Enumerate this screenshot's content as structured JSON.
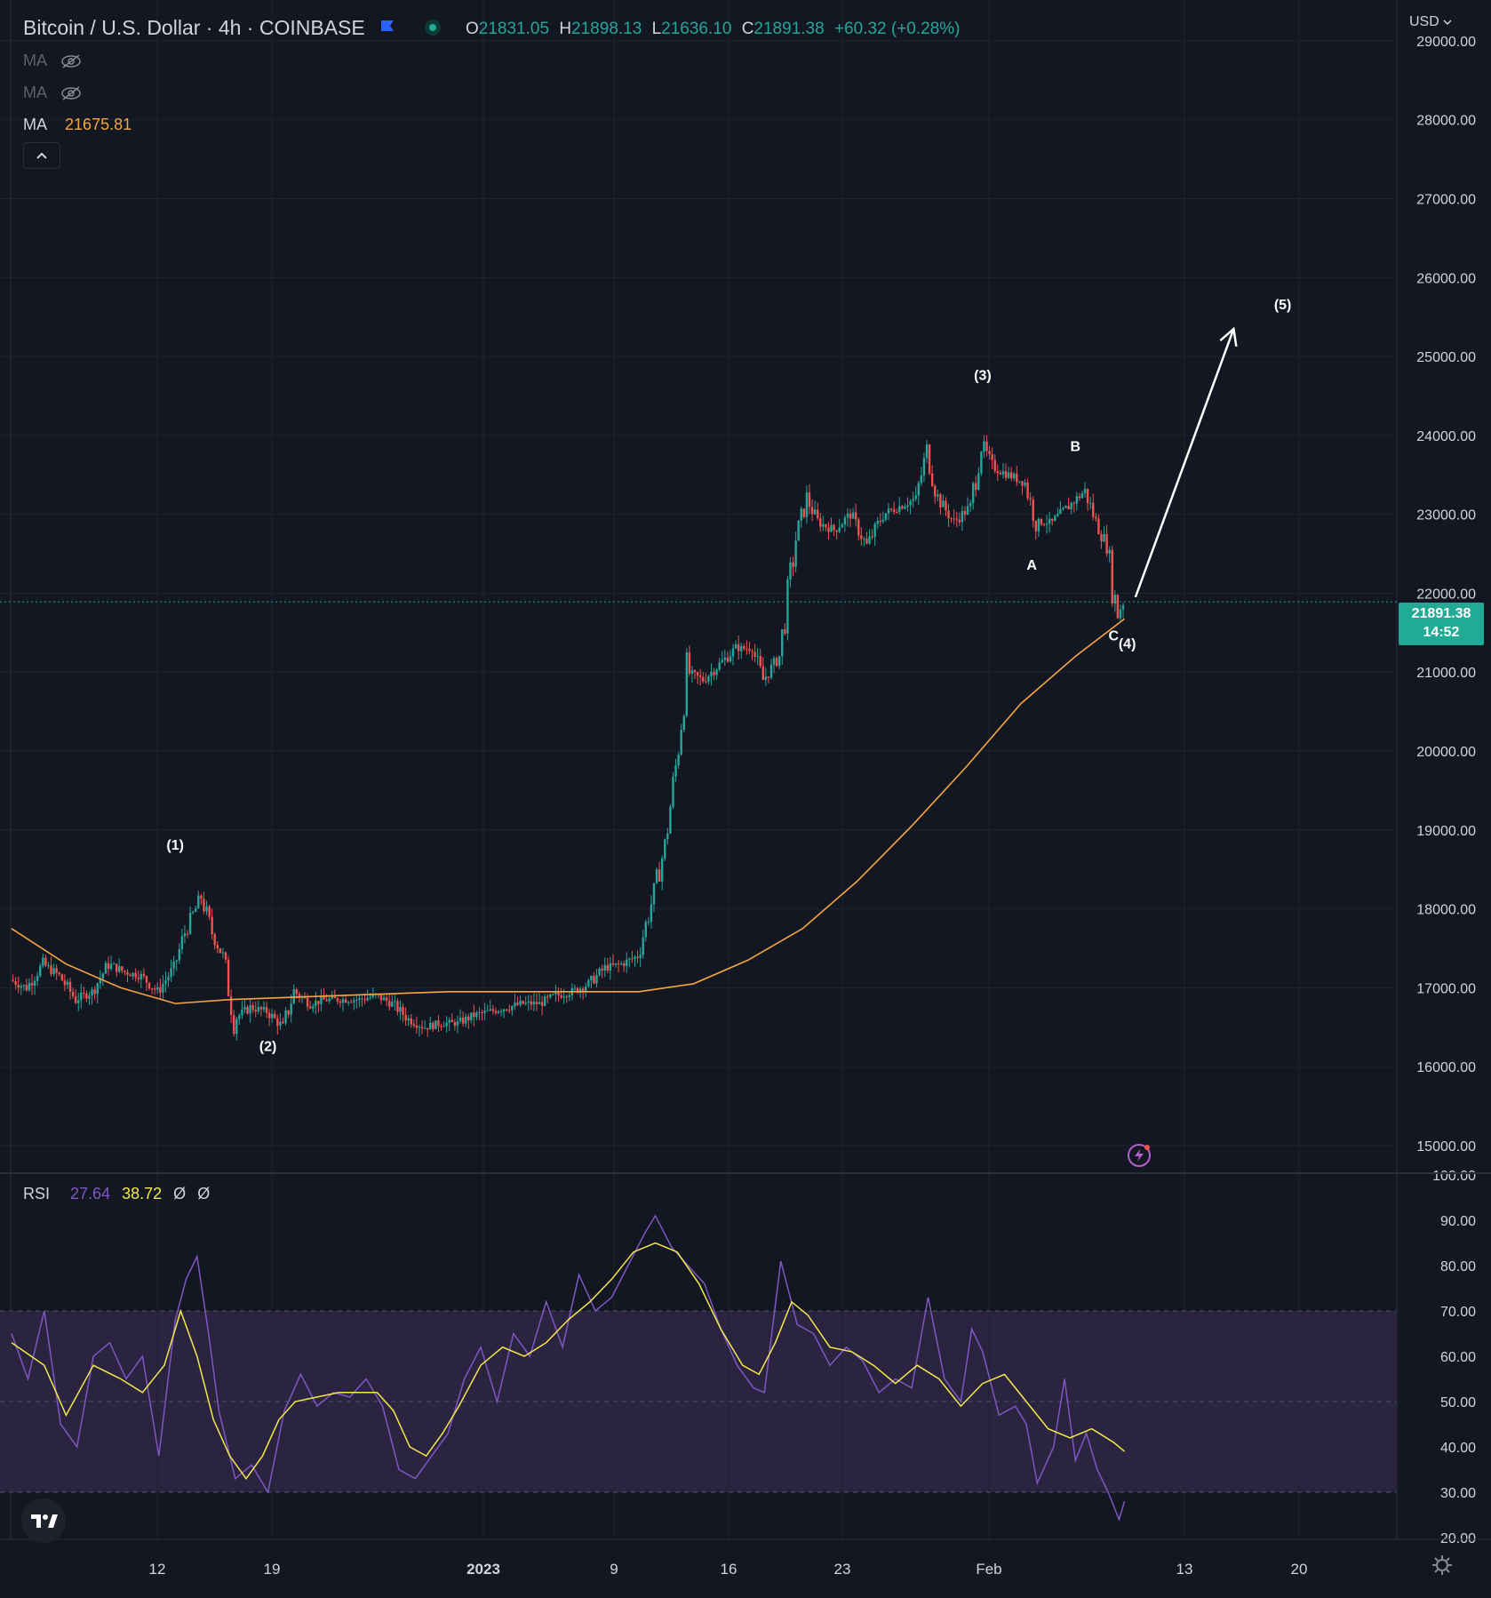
{
  "header": {
    "title": "Bitcoin / U.S. Dollar · 4h · COINBASE",
    "ohlc": [
      {
        "k": "O",
        "v": "21831.05"
      },
      {
        "k": "H",
        "v": "21898.13"
      },
      {
        "k": "L",
        "v": "21636.10"
      },
      {
        "k": "C",
        "v": "21891.38"
      }
    ],
    "change": "+60.32 (+0.28%)",
    "currency": "USD"
  },
  "indicators": {
    "ma_hidden_1": "MA",
    "ma_hidden_2": "MA",
    "ma_label": "MA",
    "ma_value": "21675.81",
    "rsi_label": "RSI",
    "rsi_value": "27.64",
    "rsi_ma_value": "38.72",
    "rsi_extra_1": "Ø",
    "rsi_extra_2": "Ø"
  },
  "last_price": {
    "value": "21891.38",
    "countdown": "14:52"
  },
  "colors": {
    "background": "#131722",
    "grid": "#1f2330",
    "up": "#26a69a",
    "down": "#ef5350",
    "ma": "#f7a541",
    "rsi": "#7e57c2",
    "rsi_ma": "#f5e94b",
    "last_price": "#22ab94",
    "rsi_band": "#2a2440",
    "text": "#d1d4dc",
    "annotation": "#ffffff"
  },
  "chart_data": [
    {
      "type": "candlestick",
      "series": [
        {
          "name": "BTCUSD",
          "points": [
            [
              0,
              17100
            ],
            [
              3,
              17000
            ],
            [
              6,
              17300
            ],
            [
              9,
              17150
            ],
            [
              12,
              16850
            ],
            [
              15,
              16950
            ],
            [
              18,
              17300
            ],
            [
              21,
              17200
            ],
            [
              24,
              17150
            ],
            [
              27,
              16950
            ],
            [
              30,
              17250
            ],
            [
              32,
              17700
            ],
            [
              34,
              18000
            ],
            [
              35,
              18150
            ],
            [
              37,
              17700
            ],
            [
              39,
              17400
            ],
            [
              41,
              16600
            ],
            [
              44,
              16750
            ],
            [
              47,
              16700
            ],
            [
              50,
              16500
            ],
            [
              52,
              16950
            ],
            [
              55,
              16800
            ],
            [
              58,
              16850
            ],
            [
              61,
              16850
            ],
            [
              64,
              16850
            ],
            [
              67,
              16900
            ],
            [
              70,
              16800
            ],
            [
              73,
              16600
            ],
            [
              76,
              16500
            ],
            [
              79,
              16550
            ],
            [
              82,
              16550
            ],
            [
              85,
              16650
            ],
            [
              88,
              16700
            ],
            [
              91,
              16750
            ],
            [
              94,
              16800
            ],
            [
              97,
              16800
            ],
            [
              100,
              16900
            ],
            [
              103,
              16950
            ],
            [
              106,
              17050
            ],
            [
              109,
              17250
            ],
            [
              112,
              17300
            ],
            [
              115,
              17400
            ],
            [
              118,
              18200
            ],
            [
              120,
              18800
            ],
            [
              122,
              19800
            ],
            [
              124,
              21000
            ],
            [
              127,
              20900
            ],
            [
              130,
              21100
            ],
            [
              133,
              21300
            ],
            [
              136,
              21300
            ],
            [
              138,
              20900
            ],
            [
              141,
              21200
            ],
            [
              144,
              22700
            ],
            [
              146,
              23200
            ],
            [
              148,
              22900
            ],
            [
              151,
              22800
            ],
            [
              154,
              23000
            ],
            [
              157,
              22600
            ],
            [
              160,
              23000
            ],
            [
              163,
              23100
            ],
            [
              166,
              23200
            ],
            [
              168,
              23800
            ],
            [
              170,
              23200
            ],
            [
              173,
              22900
            ],
            [
              176,
              23100
            ],
            [
              178,
              23900
            ],
            [
              180,
              23600
            ],
            [
              183,
              23500
            ],
            [
              186,
              23400
            ],
            [
              188,
              22900
            ],
            [
              191,
              22900
            ],
            [
              194,
              23100
            ],
            [
              197,
              23300
            ],
            [
              199,
              22900
            ],
            [
              201,
              22600
            ],
            [
              202,
              22100
            ],
            [
              203,
              21750
            ],
            [
              204,
              21891
            ]
          ]
        },
        {
          "name": "MA",
          "points": [
            [
              0,
              17750
            ],
            [
              10,
              17300
            ],
            [
              20,
              17000
            ],
            [
              30,
              16800
            ],
            [
              40,
              16850
            ],
            [
              60,
              16900
            ],
            [
              80,
              16950
            ],
            [
              100,
              16950
            ],
            [
              115,
              16950
            ],
            [
              125,
              17050
            ],
            [
              135,
              17350
            ],
            [
              145,
              17750
            ],
            [
              155,
              18350
            ],
            [
              165,
              19050
            ],
            [
              175,
              19800
            ],
            [
              185,
              20600
            ],
            [
              195,
              21200
            ],
            [
              204,
              21676
            ]
          ]
        }
      ],
      "x_ticks": [
        "12",
        "19",
        "2023",
        "9",
        "16",
        "23",
        "Feb",
        "13",
        "20"
      ],
      "y_ticks": [
        "15000.00",
        "16000.00",
        "17000.00",
        "18000.00",
        "19000.00",
        "20000.00",
        "21000.00",
        "22000.00",
        "23000.00",
        "24000.00",
        "25000.00",
        "26000.00",
        "27000.00",
        "28000.00",
        "29000.00"
      ],
      "ylim": [
        14650,
        29450
      ],
      "annotations": [
        {
          "text": "(1)",
          "x": 30,
          "y": 18750
        },
        {
          "text": "(2)",
          "x": 47,
          "y": 16200
        },
        {
          "text": "(3)",
          "x": 178,
          "y": 24700
        },
        {
          "text": "A",
          "x": 187,
          "y": 22300
        },
        {
          "text": "B",
          "x": 195,
          "y": 23800
        },
        {
          "text": "C",
          "x": 202,
          "y": 21400
        },
        {
          "text": "(4)",
          "x": 204.5,
          "y": 21300
        },
        {
          "text": "(5)",
          "x": 233,
          "y": 25600
        }
      ],
      "arrow": {
        "from": [
          206,
          21950
        ],
        "to": [
          224,
          25350
        ]
      }
    },
    {
      "type": "line",
      "title": "RSI",
      "series": [
        {
          "name": "RSI",
          "points": [
            [
              0,
              65
            ],
            [
              3,
              55
            ],
            [
              6,
              70
            ],
            [
              9,
              45
            ],
            [
              12,
              40
            ],
            [
              15,
              60
            ],
            [
              18,
              63
            ],
            [
              21,
              55
            ],
            [
              24,
              60
            ],
            [
              27,
              38
            ],
            [
              30,
              68
            ],
            [
              32,
              77
            ],
            [
              34,
              82
            ],
            [
              36,
              66
            ],
            [
              38,
              48
            ],
            [
              41,
              33
            ],
            [
              44,
              36
            ],
            [
              47,
              30
            ],
            [
              50,
              48
            ],
            [
              53,
              56
            ],
            [
              56,
              49
            ],
            [
              59,
              52
            ],
            [
              62,
              51
            ],
            [
              65,
              55
            ],
            [
              68,
              49
            ],
            [
              71,
              35
            ],
            [
              74,
              33
            ],
            [
              77,
              38
            ],
            [
              80,
              43
            ],
            [
              83,
              55
            ],
            [
              86,
              62
            ],
            [
              89,
              50
            ],
            [
              92,
              65
            ],
            [
              95,
              60
            ],
            [
              98,
              72
            ],
            [
              101,
              62
            ],
            [
              104,
              78
            ],
            [
              107,
              70
            ],
            [
              110,
              73
            ],
            [
              113,
              80
            ],
            [
              116,
              87
            ],
            [
              118,
              91
            ],
            [
              121,
              84
            ],
            [
              124,
              80
            ],
            [
              127,
              76
            ],
            [
              130,
              66
            ],
            [
              133,
              58
            ],
            [
              136,
              53
            ],
            [
              138,
              52
            ],
            [
              141,
              81
            ],
            [
              144,
              67
            ],
            [
              147,
              65
            ],
            [
              150,
              58
            ],
            [
              153,
              62
            ],
            [
              156,
              59
            ],
            [
              159,
              52
            ],
            [
              162,
              55
            ],
            [
              165,
              53
            ],
            [
              168,
              73
            ],
            [
              171,
              55
            ],
            [
              174,
              50
            ],
            [
              176,
              66
            ],
            [
              178,
              61
            ],
            [
              181,
              47
            ],
            [
              184,
              49
            ],
            [
              186,
              45
            ],
            [
              188,
              32
            ],
            [
              191,
              40
            ],
            [
              193,
              55
            ],
            [
              195,
              37
            ],
            [
              197,
              43
            ],
            [
              199,
              35
            ],
            [
              201,
              30
            ],
            [
              203,
              24
            ],
            [
              204,
              28
            ]
          ]
        },
        {
          "name": "RSI MA",
          "points": [
            [
              0,
              63
            ],
            [
              6,
              58
            ],
            [
              10,
              47
            ],
            [
              15,
              58
            ],
            [
              20,
              55
            ],
            [
              24,
              52
            ],
            [
              28,
              58
            ],
            [
              31,
              70
            ],
            [
              34,
              60
            ],
            [
              37,
              46
            ],
            [
              40,
              38
            ],
            [
              43,
              33
            ],
            [
              46,
              38
            ],
            [
              49,
              46
            ],
            [
              52,
              50
            ],
            [
              56,
              51
            ],
            [
              60,
              52
            ],
            [
              64,
              52
            ],
            [
              67,
              52
            ],
            [
              70,
              48
            ],
            [
              73,
              40
            ],
            [
              76,
              38
            ],
            [
              79,
              43
            ],
            [
              82,
              49
            ],
            [
              86,
              58
            ],
            [
              90,
              62
            ],
            [
              94,
              60
            ],
            [
              98,
              63
            ],
            [
              102,
              68
            ],
            [
              106,
              72
            ],
            [
              110,
              77
            ],
            [
              114,
              83
            ],
            [
              118,
              85
            ],
            [
              122,
              83
            ],
            [
              126,
              76
            ],
            [
              130,
              66
            ],
            [
              134,
              58
            ],
            [
              137,
              56
            ],
            [
              140,
              63
            ],
            [
              143,
              72
            ],
            [
              146,
              69
            ],
            [
              150,
              62
            ],
            [
              154,
              61
            ],
            [
              158,
              58
            ],
            [
              162,
              54
            ],
            [
              166,
              58
            ],
            [
              170,
              55
            ],
            [
              174,
              49
            ],
            [
              178,
              54
            ],
            [
              182,
              56
            ],
            [
              186,
              50
            ],
            [
              190,
              44
            ],
            [
              194,
              42
            ],
            [
              198,
              44
            ],
            [
              202,
              41
            ],
            [
              204,
              39
            ]
          ]
        }
      ],
      "y_ticks": [
        "20.00",
        "30.00",
        "40.00",
        "50.00",
        "60.00",
        "70.00",
        "80.00",
        "90.00",
        "100.00"
      ],
      "ylim": [
        20,
        100
      ],
      "bands": {
        "upper": 70,
        "middle": 50,
        "lower": 30
      }
    }
  ]
}
